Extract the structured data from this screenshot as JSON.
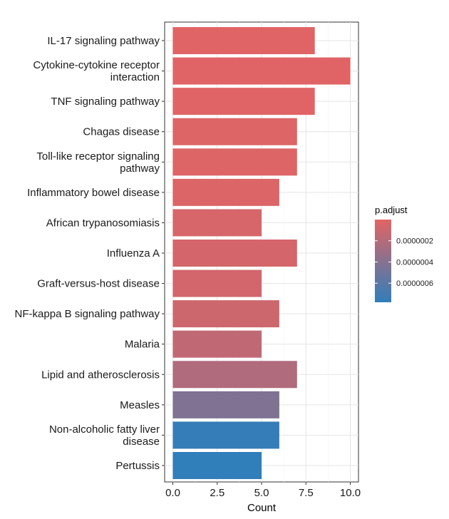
{
  "chart_data": {
    "type": "bar",
    "orientation": "horizontal",
    "categories": [
      "IL-17 signaling pathway",
      "Cytokine-cytokine receptor interaction",
      "TNF signaling pathway",
      "Chagas disease",
      "Toll-like receptor signaling pathway",
      "Inflammatory bowel disease",
      "African trypanosomiasis",
      "Influenza A",
      "Graft-versus-host disease",
      "NF-kappa B signaling pathway",
      "Malaria",
      "Lipid and atherosclerosis",
      "Measles",
      "Non-alcoholic fatty liver disease",
      "Pertussis"
    ],
    "category_label_lines": [
      [
        "IL-17 signaling pathway"
      ],
      [
        "Cytokine-cytokine receptor",
        "interaction"
      ],
      [
        "TNF signaling pathway"
      ],
      [
        "Chagas disease"
      ],
      [
        "Toll-like receptor signaling",
        "pathway"
      ],
      [
        "Inflammatory bowel disease"
      ],
      [
        "African trypanosomiasis"
      ],
      [
        "Influenza A"
      ],
      [
        "Graft-versus-host disease"
      ],
      [
        "NF-kappa B signaling pathway"
      ],
      [
        "Malaria"
      ],
      [
        "Lipid and atherosclerosis"
      ],
      [
        "Measles"
      ],
      [
        "Non-alcoholic fatty liver",
        "disease"
      ],
      [
        "Pertussis"
      ]
    ],
    "values": [
      8,
      10,
      8,
      7,
      7,
      6,
      5,
      7,
      5,
      6,
      5,
      7,
      6,
      6,
      5
    ],
    "p_adjust": [
      1e-08,
      1e-08,
      1e-08,
      2e-08,
      2e-08,
      3e-08,
      5e-08,
      6e-08,
      7e-08,
      9e-08,
      1.5e-07,
      2.2e-07,
      4.3e-07,
      7.6e-07,
      7.8e-07
    ],
    "xlabel": "Count",
    "ylabel": "",
    "xlim": [
      0,
      10.5
    ],
    "x_ticks": [
      0,
      2.5,
      5,
      7.5,
      10
    ],
    "x_tick_labels": [
      "0.0",
      "2.5",
      "5.0",
      "7.5",
      "10.0"
    ],
    "grid": true,
    "legend": {
      "title": "p.adjust",
      "placement": "right",
      "range": [
        0,
        7.8e-07
      ],
      "ticks": [
        2e-07,
        4e-07,
        6e-07
      ],
      "tick_labels": [
        "0.0000002",
        "0.0000004",
        "0.0000006"
      ],
      "low_color": "#E26464",
      "high_color": "#307EBA"
    }
  }
}
